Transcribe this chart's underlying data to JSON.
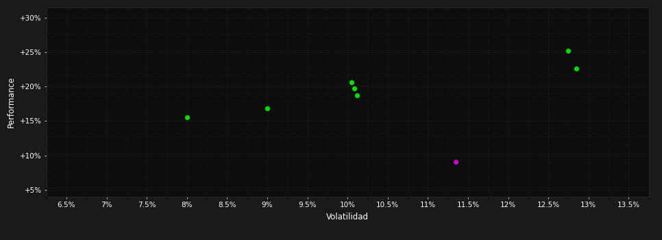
{
  "background_color": "#1a1a1a",
  "plot_bg_color": "#0d0d0d",
  "grid_color": "#2a2a2a",
  "text_color": "#ffffff",
  "xlabel": "Volatilidad",
  "ylabel": "Performance",
  "xlim": [
    0.0625,
    0.1375
  ],
  "ylim": [
    0.04,
    0.315
  ],
  "xticks": [
    0.065,
    0.07,
    0.075,
    0.08,
    0.085,
    0.09,
    0.095,
    0.1,
    0.105,
    0.11,
    0.115,
    0.12,
    0.125,
    0.13,
    0.135
  ],
  "yticks": [
    0.05,
    0.1,
    0.15,
    0.2,
    0.25,
    0.3
  ],
  "xtick_labels": [
    "6.5%",
    "7%",
    "7.5%",
    "8%",
    "8.5%",
    "9%",
    "9.5%",
    "10%",
    "10.5%",
    "11%",
    "11.5%",
    "12%",
    "12.5%",
    "13%",
    "13.5%"
  ],
  "ytick_labels": [
    "+5%",
    "+10%",
    "+15%",
    "+20%",
    "+25%",
    "+30%"
  ],
  "green_points": [
    [
      0.08,
      0.155
    ],
    [
      0.09,
      0.168
    ],
    [
      0.1005,
      0.206
    ],
    [
      0.1008,
      0.197
    ],
    [
      0.1012,
      0.187
    ],
    [
      0.1275,
      0.252
    ],
    [
      0.1285,
      0.226
    ]
  ],
  "magenta_points": [
    [
      0.1135,
      0.091
    ]
  ],
  "green_color": "#00dd00",
  "magenta_color": "#cc00cc",
  "dot_size": 18
}
